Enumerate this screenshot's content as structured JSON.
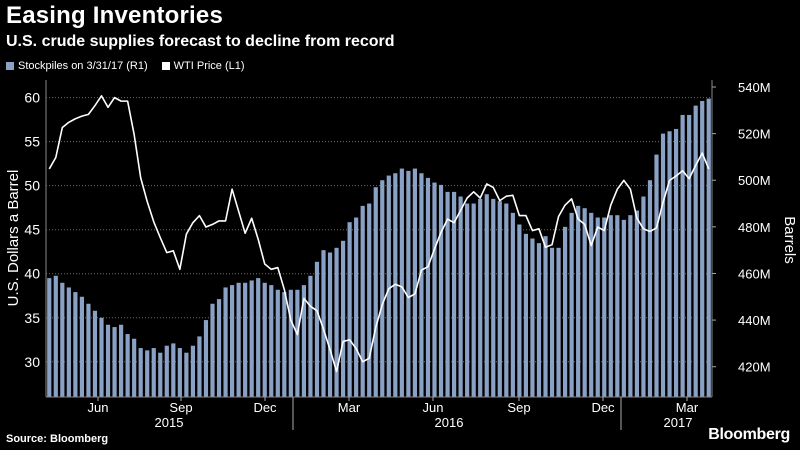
{
  "header": {
    "title": "Easing Inventories",
    "subtitle": "U.S. crude supplies forecast to decline from record"
  },
  "legend": {
    "stockpiles_label": "Stockpiles on 3/31/17 (R1)",
    "wti_label": "WTI Price (L1)"
  },
  "footer": {
    "source": "Source: Bloomberg",
    "logo": "Bloomberg"
  },
  "colors": {
    "background": "#000000",
    "bars": "#8aa1c6",
    "line": "#ffffff",
    "grid": "#6a6a6a",
    "axis_text": "#ffffff"
  },
  "chart_data": {
    "type": "bar",
    "ylabel_left": "U.S. Dollars a Barrel",
    "ylabel_right": "Barrels",
    "left_axis": {
      "ylim": [
        26,
        62
      ],
      "ticks": [
        30,
        35,
        40,
        45,
        50,
        55,
        60
      ],
      "tick_labels": [
        "30",
        "35",
        "40",
        "45",
        "50",
        "55",
        "60"
      ]
    },
    "right_axis": {
      "ylim": [
        407,
        543
      ],
      "ticks": [
        420,
        440,
        460,
        480,
        500,
        520,
        540
      ],
      "tick_labels": [
        "420M",
        "440M",
        "460M",
        "480M",
        "500M",
        "520M",
        "540M"
      ]
    },
    "x_month_ticks": [
      "Jun",
      "Sep",
      "Dec",
      "Mar",
      "Jun",
      "Sep",
      "Dec",
      "Mar"
    ],
    "x_year_labels": [
      "2015",
      "2016",
      "2017"
    ],
    "grid": true,
    "legend_position": "top-left",
    "series": [
      {
        "name": "Stockpiles on 3/31/17 (R1)",
        "type": "bar",
        "axis": "right",
        "unit": "M barrels",
        "values": [
          458,
          459,
          456,
          454,
          452,
          450,
          447,
          444,
          441,
          438,
          437,
          438,
          434,
          432,
          428,
          427,
          428,
          426,
          429,
          430,
          428,
          426,
          429,
          433,
          440,
          447,
          449,
          454,
          455,
          456,
          456,
          457,
          458,
          456,
          455,
          453,
          452,
          453,
          453,
          455,
          459,
          465,
          470,
          469,
          471,
          474,
          482,
          484,
          489,
          490,
          497,
          500,
          502,
          503,
          505,
          504,
          505,
          503,
          501,
          499,
          498,
          495,
          495,
          493,
          490,
          490,
          492,
          494,
          492,
          491,
          490,
          486,
          481,
          477,
          475,
          473,
          476,
          471,
          471,
          480,
          486,
          489,
          488,
          486,
          484,
          484,
          485,
          485,
          483,
          485,
          487,
          493,
          500,
          511,
          520,
          521,
          522,
          528,
          528,
          532,
          534,
          535
        ]
      },
      {
        "name": "WTI Price (L1)",
        "type": "line",
        "axis": "left",
        "unit": "USD/bbl",
        "values": [
          51.9,
          53.2,
          56.6,
          57.2,
          57.6,
          57.9,
          58.1,
          59.1,
          60.2,
          58.9,
          60.0,
          59.6,
          59.6,
          55.8,
          50.9,
          48.2,
          45.9,
          44.1,
          42.4,
          42.6,
          40.5,
          44.5,
          45.8,
          46.6,
          45.3,
          45.6,
          46.0,
          46.0,
          49.6,
          47.1,
          44.6,
          46.3,
          43.9,
          41.1,
          40.5,
          40.7,
          38.2,
          34.7,
          33.1,
          37.2,
          36.3,
          35.8,
          33.7,
          31.4,
          28.9,
          32.3,
          32.5,
          31.5,
          30.0,
          30.4,
          33.9,
          36.5,
          38.3,
          38.8,
          38.5,
          37.3,
          37.7,
          40.4,
          40.8,
          42.8,
          44.7,
          46.2,
          45.8,
          47.2,
          48.6,
          49.3,
          48.6,
          50.2,
          49.8,
          48.3,
          48.8,
          48.9,
          46.6,
          46.6,
          44.9,
          45.1,
          43.0,
          43.3,
          46.5,
          47.8,
          48.5,
          46.2,
          45.6,
          43.2,
          45.3,
          44.9,
          47.8,
          49.6,
          50.6,
          49.6,
          46.3,
          45.1,
          44.8,
          45.2,
          48.1,
          50.6,
          51.1,
          51.7,
          50.8,
          52.3,
          53.7,
          51.9
        ]
      }
    ]
  }
}
